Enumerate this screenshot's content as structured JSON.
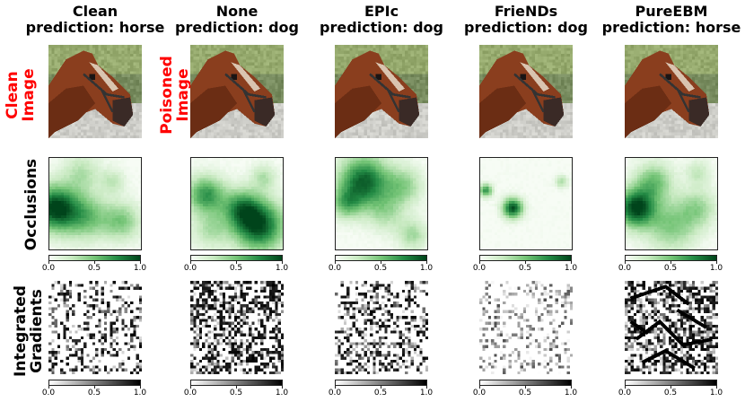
{
  "columns": [
    {
      "method": "Clean",
      "prediction": "prediction: horse"
    },
    {
      "method": "None",
      "prediction": "prediction: dog"
    },
    {
      "method": "EPIc",
      "prediction": "prediction: dog"
    },
    {
      "method": "FrieNDs",
      "prediction": "prediction: dog"
    },
    {
      "method": "PureEBM",
      "prediction": "prediction: horse"
    }
  ],
  "row_labels": {
    "clean_image": [
      "Clean",
      "Image"
    ],
    "poisoned_image": [
      "Poisoned",
      "Image"
    ],
    "occlusions": "Occlusions",
    "integrated_gradients": [
      "Integrated",
      "Gradients"
    ]
  },
  "colorbar_ticks": [
    "0.0",
    "0.5",
    "1.0"
  ],
  "colors": {
    "row_label_red": "#ff0000",
    "occlusion_high": "#00441b",
    "occlusion_low": "#f7fcf5",
    "ig_high": "#000000",
    "ig_low": "#ffffff"
  }
}
